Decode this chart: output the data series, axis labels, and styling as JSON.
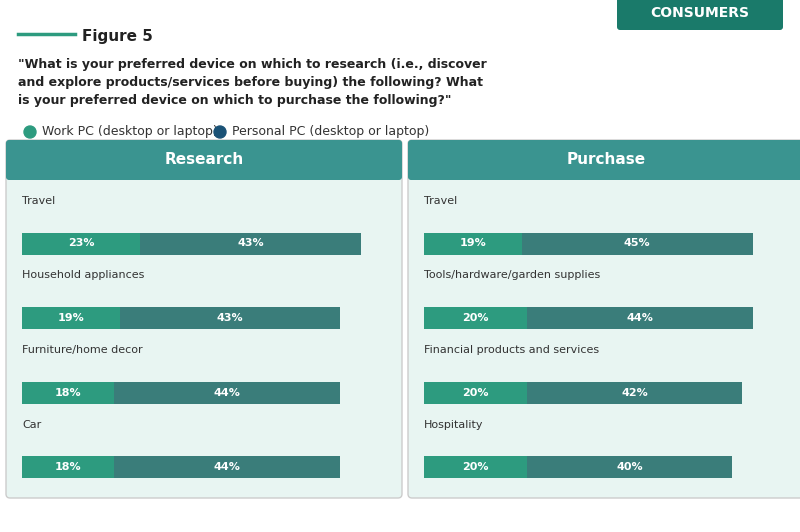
{
  "title": "Figure 5",
  "question": "\"What is your preferred device on which to research (i.e., discover\nand explore products/services before buying) the following? What\nis your preferred device on which to purchase the following?\"",
  "legend": [
    {
      "label": "Work PC (desktop or laptop)",
      "color": "#2d9b7f"
    },
    {
      "label": "Personal PC (desktop or laptop)",
      "color": "#1a5276"
    }
  ],
  "consumers_label": "CONSUMERS",
  "consumers_bg": "#1a7a6a",
  "panel_bg": "#e8f5f2",
  "panel_header_gradient_start": "#2d9b7f",
  "panel_header_gradient_end": "#5b9ba8",
  "bar_color1": "#2d9b7f",
  "bar_color2": "#3a7d7a",
  "research": {
    "header": "Research",
    "items": [
      {
        "label": "Travel",
        "work_pct": 23,
        "personal_pct": 43
      },
      {
        "label": "Household appliances",
        "work_pct": 19,
        "personal_pct": 43
      },
      {
        "label": "Furniture/home decor",
        "work_pct": 18,
        "personal_pct": 44
      },
      {
        "label": "Car",
        "work_pct": 18,
        "personal_pct": 44
      }
    ]
  },
  "purchase": {
    "header": "Purchase",
    "items": [
      {
        "label": "Travel",
        "work_pct": 19,
        "personal_pct": 45
      },
      {
        "label": "Tools/hardware/garden supplies",
        "work_pct": 20,
        "personal_pct": 44
      },
      {
        "label": "Financial products and services",
        "work_pct": 20,
        "personal_pct": 42
      },
      {
        "label": "Hospitality",
        "work_pct": 20,
        "personal_pct": 40
      }
    ]
  },
  "background_color": "#ffffff",
  "figure_line_color": "#2d9b7f"
}
